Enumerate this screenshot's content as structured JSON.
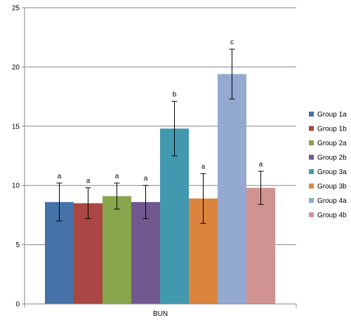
{
  "chart_data": {
    "type": "bar",
    "categories": [
      "BUN"
    ],
    "series": [
      {
        "name": "Group 1a",
        "color": "#4572a7",
        "value": 8.6,
        "error": 1.6,
        "label": "a"
      },
      {
        "name": "Group 1b",
        "color": "#aa4643",
        "value": 8.5,
        "error": 1.3,
        "label": "a"
      },
      {
        "name": "Group 2a",
        "color": "#89a54e",
        "value": 9.1,
        "error": 1.1,
        "label": "a"
      },
      {
        "name": "Group 2b",
        "color": "#71588f",
        "value": 8.6,
        "error": 1.4,
        "label": "a"
      },
      {
        "name": "Group 3a",
        "color": "#4198af",
        "value": 14.8,
        "error": 2.3,
        "label": "b"
      },
      {
        "name": "Group 3b",
        "color": "#db843d",
        "value": 8.9,
        "error": 2.1,
        "label": "a"
      },
      {
        "name": "Group 4a",
        "color": "#93a9cf",
        "value": 19.4,
        "error": 2.1,
        "label": "c"
      },
      {
        "name": "Group 4b",
        "color": "#d19392",
        "value": 9.8,
        "error": 1.4,
        "label": "a"
      }
    ],
    "yticks": [
      "0",
      "5",
      "10",
      "15",
      "20",
      "25"
    ],
    "ylim": [
      0,
      25
    ],
    "title": "",
    "xlabel": "",
    "ylabel": "",
    "grid": true,
    "legend": "right"
  }
}
